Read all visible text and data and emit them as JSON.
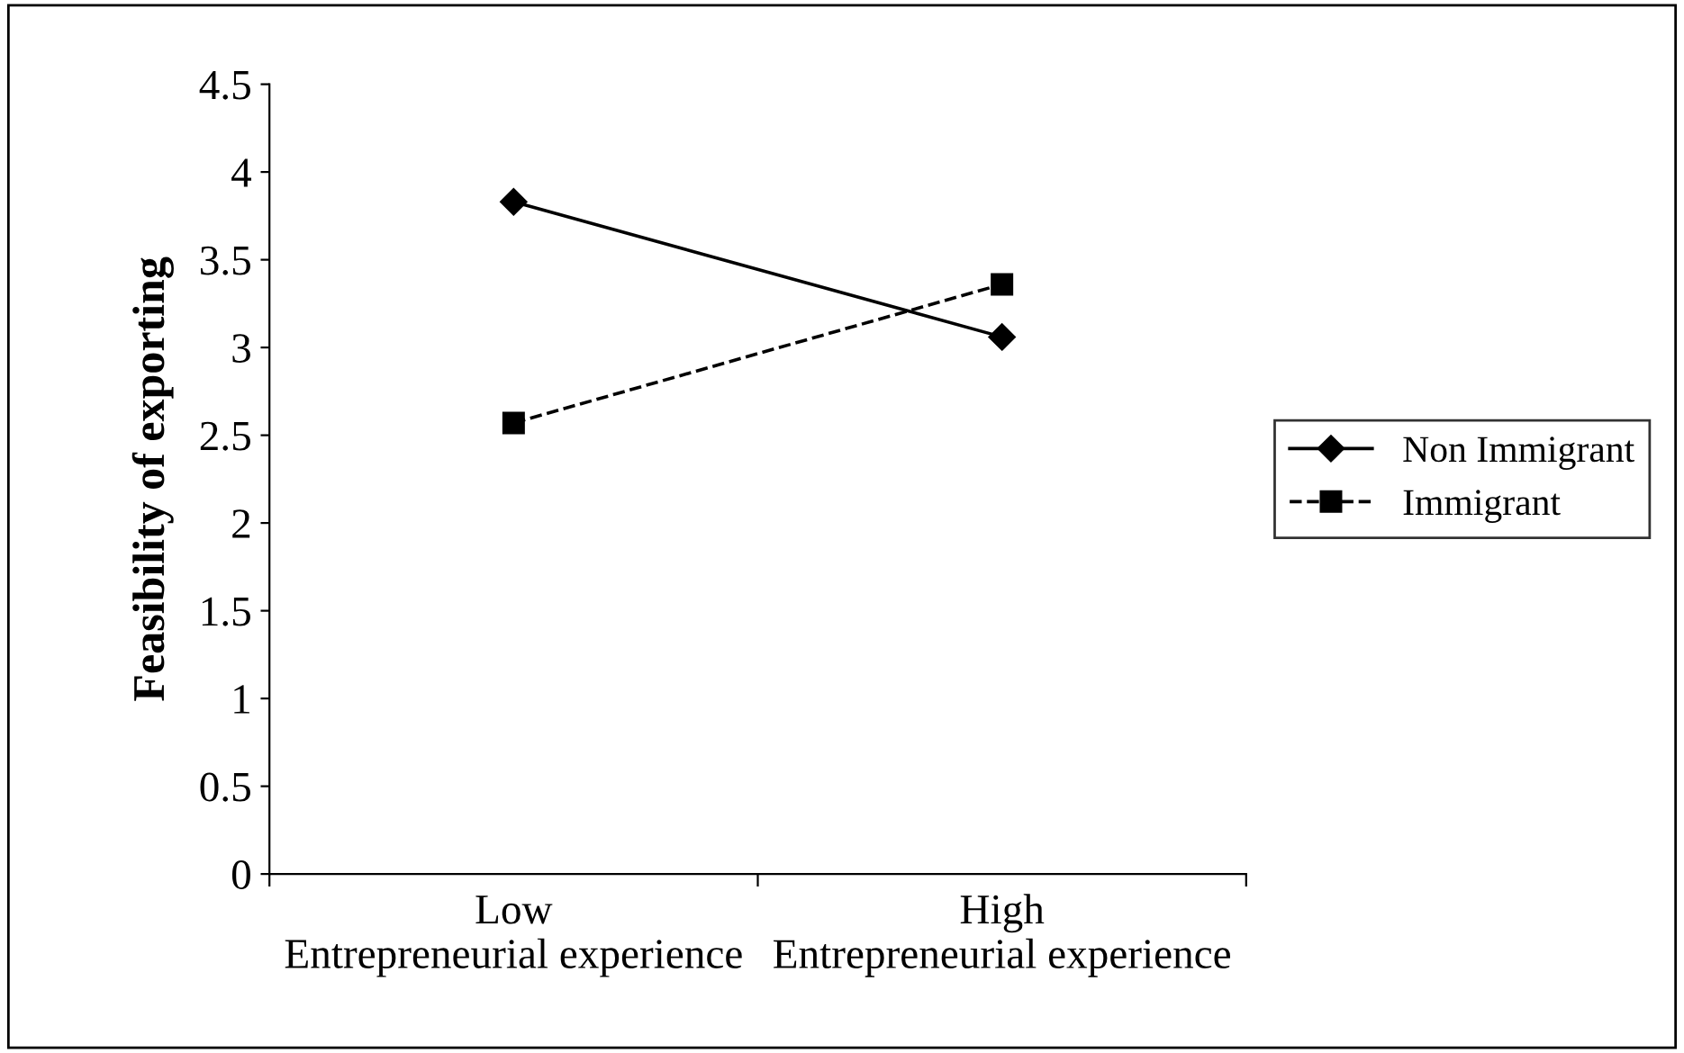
{
  "chart_data": {
    "type": "line",
    "xlabel": null,
    "ylabel": "Feasibility of exporting",
    "categories": [
      "Low Entrepreneurial experience",
      "High Entrepreneurial experience"
    ],
    "series": [
      {
        "name": "Non Immigrant",
        "color": "#000000",
        "values": [
          3.83,
          3.06
        ],
        "marker": "diamond",
        "line_style": "solid"
      },
      {
        "name": "Immigrant",
        "color": "#000000",
        "values": [
          2.57,
          3.36
        ],
        "marker": "square",
        "line_style": "dashed"
      }
    ],
    "ylim": [
      0,
      4.5
    ],
    "yticks": [
      0,
      0.5,
      1,
      1.5,
      2,
      2.5,
      3,
      3.5,
      4,
      4.5
    ],
    "grid": false,
    "legend": "right"
  }
}
